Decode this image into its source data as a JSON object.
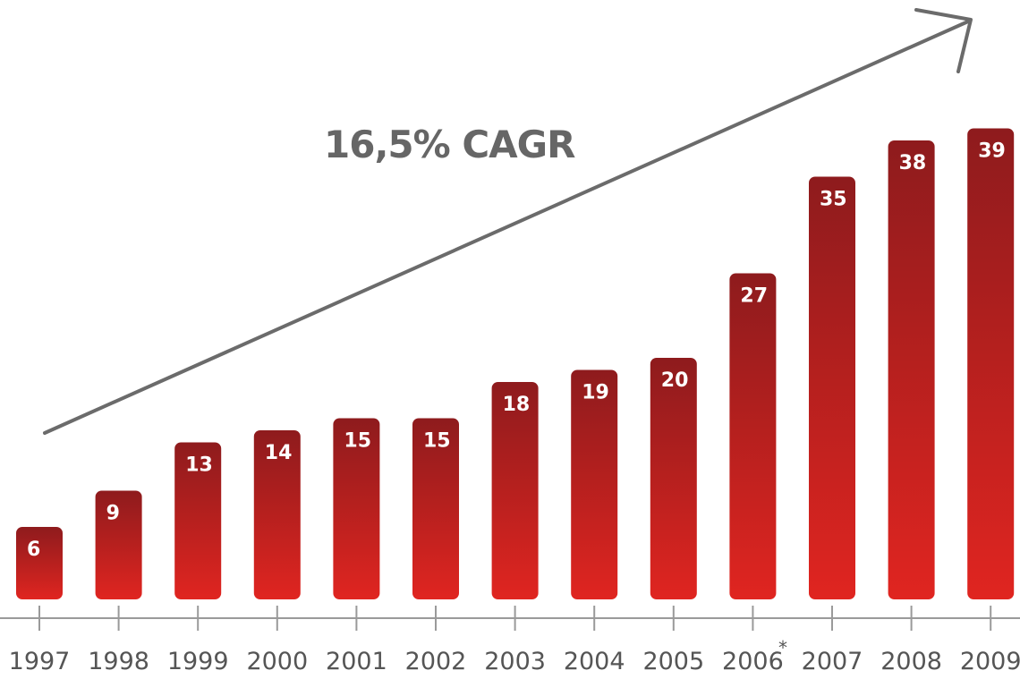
{
  "chart_data": {
    "type": "bar",
    "categories": [
      "1997",
      "1998",
      "1999",
      "2000",
      "2001",
      "2002",
      "2003",
      "2004",
      "2005",
      "2006",
      "2007",
      "2008",
      "2009"
    ],
    "values": [
      6,
      9,
      13,
      14,
      15,
      15,
      18,
      19,
      20,
      27,
      35,
      38,
      39
    ],
    "data_labels": [
      "6",
      "9",
      "13",
      "14",
      "15",
      "15",
      "18",
      "19",
      "20",
      "27",
      "35",
      "38",
      "39"
    ],
    "annotation": "16,5% CAGR",
    "footnote_marker": "*",
    "footnote_category": "2006",
    "ylim": [
      0,
      40
    ],
    "grid": false,
    "legend": "none",
    "colors": {
      "bar_top": "#8e1b1d",
      "bar_bottom": "#e02520",
      "arrow": "#6b6b6b",
      "axis": "#9a9a9a",
      "text": "#555555"
    }
  }
}
